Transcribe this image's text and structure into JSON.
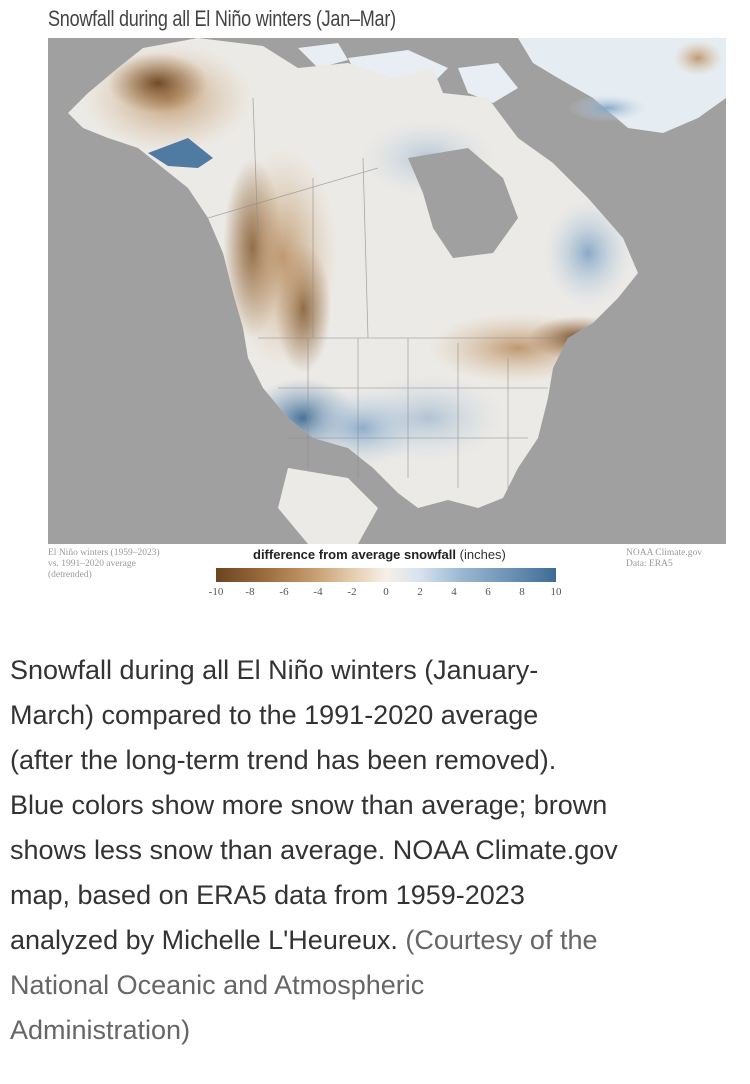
{
  "figure": {
    "title": "Snowfall during all El Niño winters (Jan–Mar)",
    "note_left": [
      "El Niño winters (1959–2023)",
      "vs. 1991–2020 average",
      "(detrended)"
    ],
    "note_right": [
      "NOAA Climate.gov",
      "Data: ERA5"
    ],
    "legend": {
      "title_bold": "difference from average snowfall",
      "title_unit": "(inches)",
      "ticks": [
        "-10",
        "-8",
        "-6",
        "-4",
        "-2",
        "0",
        "2",
        "4",
        "6",
        "8",
        "10"
      ],
      "range": [
        -10,
        10
      ],
      "colors": {
        "less_snow": "#6b4420",
        "neutral": "#f6f0e8",
        "more_snow": "#3f6c94",
        "no_data_gray": "#a0a0a0"
      }
    }
  },
  "caption": {
    "lines": [
      "Snowfall during all El Niño winters (January-",
      "March) compared to the 1991-2020 average",
      "(after the long-term trend has been removed).",
      "Blue colors show more snow than average; brown",
      "shows less snow than average. NOAA Climate.gov",
      "map, based on ERA5 data from 1959-2023"
    ],
    "last_line_main": "analyzed by Michelle L'Heureux.",
    "credit_first": "(Courtesy of the",
    "credit_lines": [
      "National Oceanic and Atmospheric",
      "Administration)"
    ]
  }
}
